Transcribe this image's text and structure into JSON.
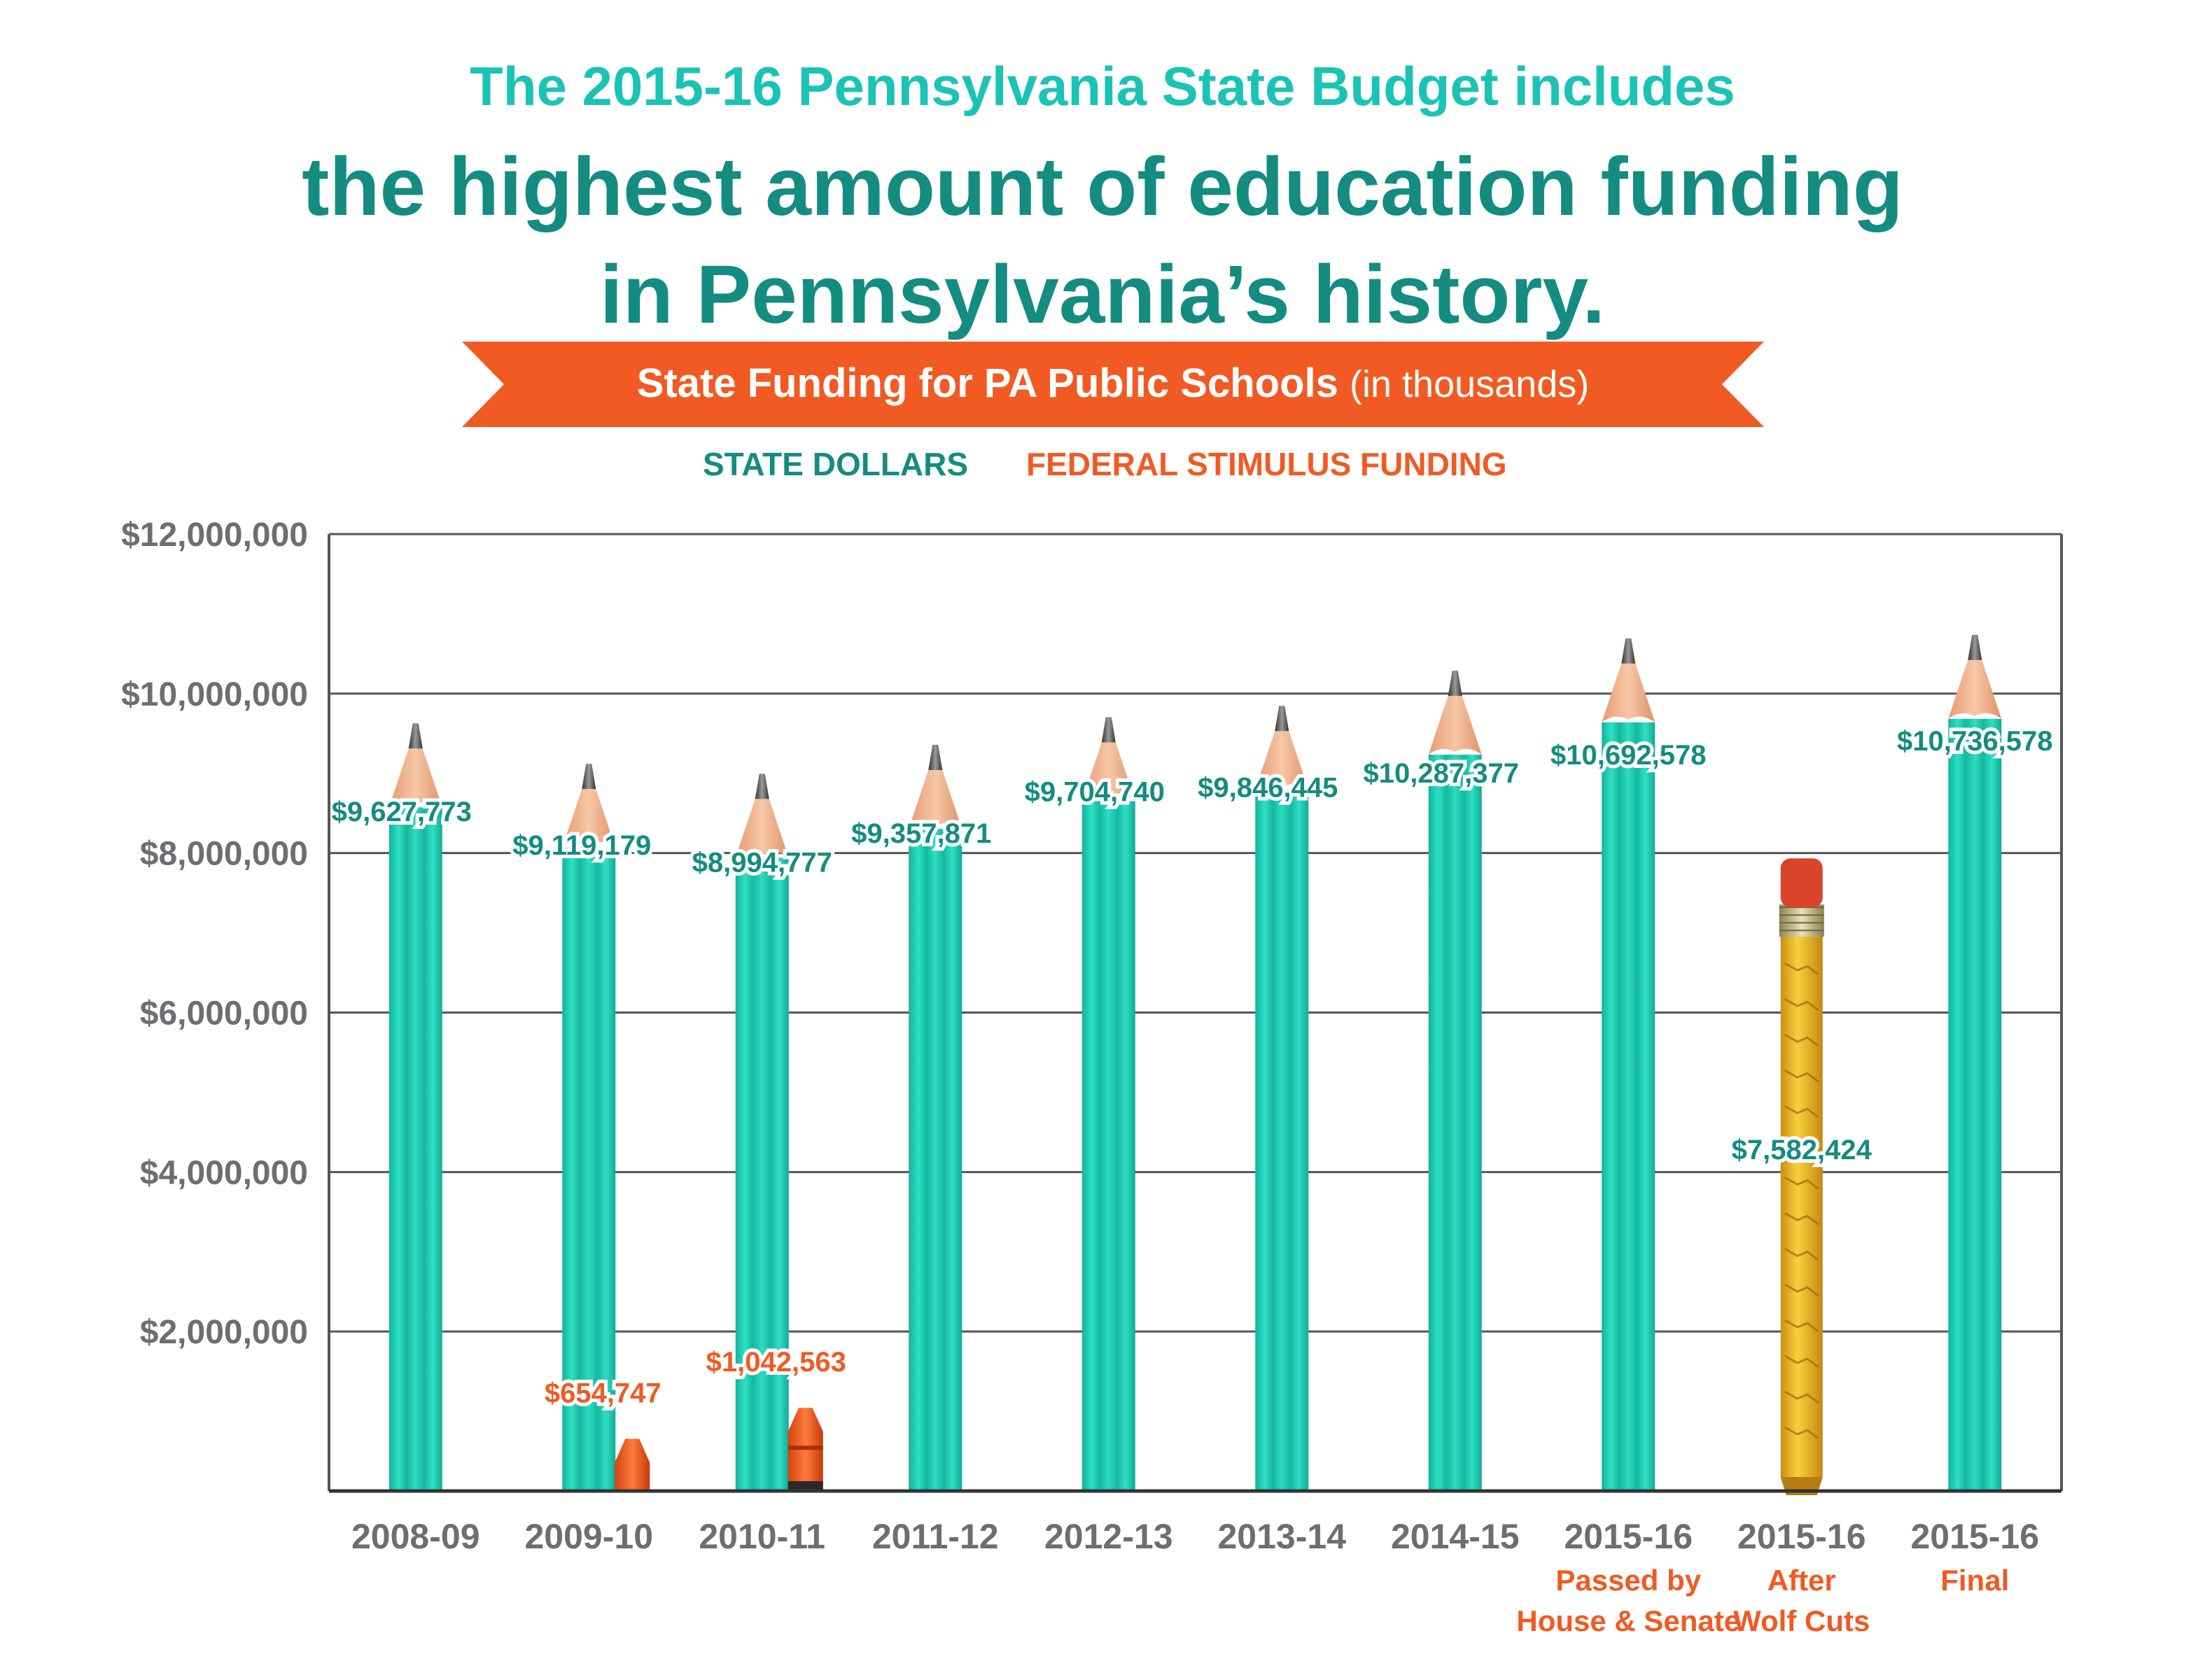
{
  "header": {
    "line1": "The 2015-16 Pennsylvania State Budget includes",
    "line2": "the highest amount of education funding",
    "line3": "in Pennsylvania’s history."
  },
  "banner": {
    "title": "State Funding for PA Public Schools",
    "unit": "(in thousands)"
  },
  "legend": {
    "state": "STATE DOLLARS",
    "federal": "FEDERAL STIMULUS FUNDING"
  },
  "colors": {
    "title_light": "#1bc3b5",
    "title_dark": "#148c80",
    "accent_orange": "#f15a22",
    "state_pencil": "#1ccfb3",
    "wolf_pencil": "#f2c12e",
    "grid": "#555555"
  },
  "chart_data": {
    "type": "bar",
    "title": "State Funding for PA Public Schools (in thousands)",
    "ylim": [
      0,
      12000000
    ],
    "yticks": [
      2000000,
      4000000,
      6000000,
      8000000,
      10000000,
      12000000
    ],
    "ytick_labels": [
      "$2,000,000",
      "$4,000,000",
      "$6,000,000",
      "$8,000,000",
      "$10,000,000",
      "$12,000,000"
    ],
    "grid": true,
    "legend_position": "top",
    "categories": [
      {
        "year": "2008-09",
        "note": ""
      },
      {
        "year": "2009-10",
        "note": ""
      },
      {
        "year": "2010-11",
        "note": ""
      },
      {
        "year": "2011-12",
        "note": ""
      },
      {
        "year": "2012-13",
        "note": ""
      },
      {
        "year": "2013-14",
        "note": ""
      },
      {
        "year": "2014-15",
        "note": ""
      },
      {
        "year": "2015-16",
        "note": "Passed by\nHouse & Senate"
      },
      {
        "year": "2015-16",
        "note": "After\nWolf Cuts"
      },
      {
        "year": "2015-16",
        "note": "Final"
      }
    ],
    "series": [
      {
        "name": "STATE DOLLARS",
        "values": [
          9627773,
          9119179,
          8994777,
          9357871,
          9704740,
          9846445,
          10287377,
          10692578,
          7582424,
          10736578
        ],
        "labels": [
          "$9,627,773",
          "$9,119,179",
          "$8,994,777",
          "$9,357,871",
          "$9,704,740",
          "$9,846,445",
          "$10,287,377",
          "$10,692,578",
          "$7,582,424",
          "$10,736,578"
        ]
      },
      {
        "name": "FEDERAL STIMULUS FUNDING",
        "values": [
          null,
          654747,
          1042563,
          null,
          null,
          null,
          null,
          null,
          null,
          null
        ],
        "labels": [
          "",
          "$654,747",
          "$1,042,563",
          "",
          "",
          "",
          "",
          "",
          "",
          ""
        ]
      }
    ]
  }
}
